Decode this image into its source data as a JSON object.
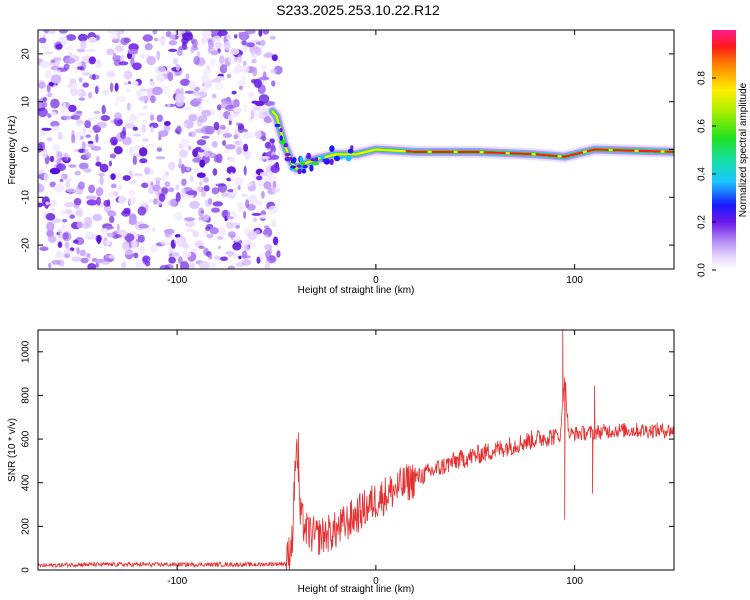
{
  "title": "S233.2025.253.10.22.R12",
  "colors": {
    "axis": "#000000",
    "snr_line": "#e53030",
    "background": "#ffffff"
  },
  "chart_data": [
    {
      "type": "heatmap",
      "name": "spectrogram",
      "xlabel": "Height of straight line (km)",
      "ylabel": "Frequency (Hz)",
      "xlim": [
        -170,
        150
      ],
      "ylim": [
        -25,
        25
      ],
      "x_ticks": [
        -100,
        0,
        100
      ],
      "y_ticks": [
        -20,
        -10,
        0,
        10,
        20
      ],
      "x_tick_labels": [
        "-100",
        "0",
        "100"
      ],
      "y_tick_labels": [
        "-20",
        "-10",
        "0",
        "10",
        "20"
      ],
      "noise_region_x": [
        -170,
        -52
      ],
      "signal_trace": {
        "x": [
          -52,
          -50,
          -48,
          -46,
          -44,
          -42,
          -40,
          -36,
          -30,
          -20,
          -10,
          0,
          20,
          50,
          80,
          95,
          110,
          150
        ],
        "y": [
          8,
          7,
          4,
          1,
          -1,
          -3,
          -4,
          -3,
          -2,
          -1,
          -1,
          0,
          -0.5,
          -0.5,
          -1,
          -1.5,
          0,
          -0.5
        ]
      },
      "colorbar": {
        "label": "Normalized spectral amplitude",
        "range": [
          0,
          1
        ],
        "ticks": [
          0.0,
          0.2,
          0.4,
          0.6,
          0.8
        ],
        "tick_labels": [
          "0.0",
          "0.2",
          "0.4",
          "0.6",
          "0.8"
        ]
      }
    },
    {
      "type": "line",
      "name": "snr",
      "xlabel": "Height of straight line (km)",
      "ylabel": "SNR (10 * v/v)",
      "xlim": [
        -170,
        150
      ],
      "ylim": [
        0,
        1100
      ],
      "x_ticks": [
        -100,
        0,
        100
      ],
      "y_ticks": [
        0,
        200,
        400,
        600,
        800,
        1000
      ],
      "x_tick_labels": [
        "-100",
        "0",
        "100"
      ],
      "y_tick_labels": [
        "0",
        "200",
        "400",
        "600",
        "800",
        "1000"
      ],
      "series": [
        {
          "name": "SNR",
          "envelope": {
            "x": [
              -170,
              -150,
              -100,
              -60,
              -45,
              -42,
              -40,
              -38,
              -35,
              -30,
              -20,
              -10,
              0,
              10,
              20,
              30,
              40,
              60,
              80,
              90,
              93,
              95,
              97,
              100,
              110,
              120,
              150
            ],
            "y": [
              20,
              25,
              25,
              25,
              30,
              150,
              600,
              250,
              180,
              150,
              180,
              250,
              320,
              370,
              420,
              460,
              500,
              550,
              600,
              615,
              620,
              900,
              620,
              625,
              630,
              640,
              640
            ]
          },
          "spikes": [
            {
              "x": -39,
              "y": 630
            },
            {
              "x": 94,
              "y": 1100
            },
            {
              "x": 95,
              "y": 230
            },
            {
              "x": 110,
              "y": 845
            },
            {
              "x": 109,
              "y": 350
            }
          ]
        }
      ]
    }
  ]
}
